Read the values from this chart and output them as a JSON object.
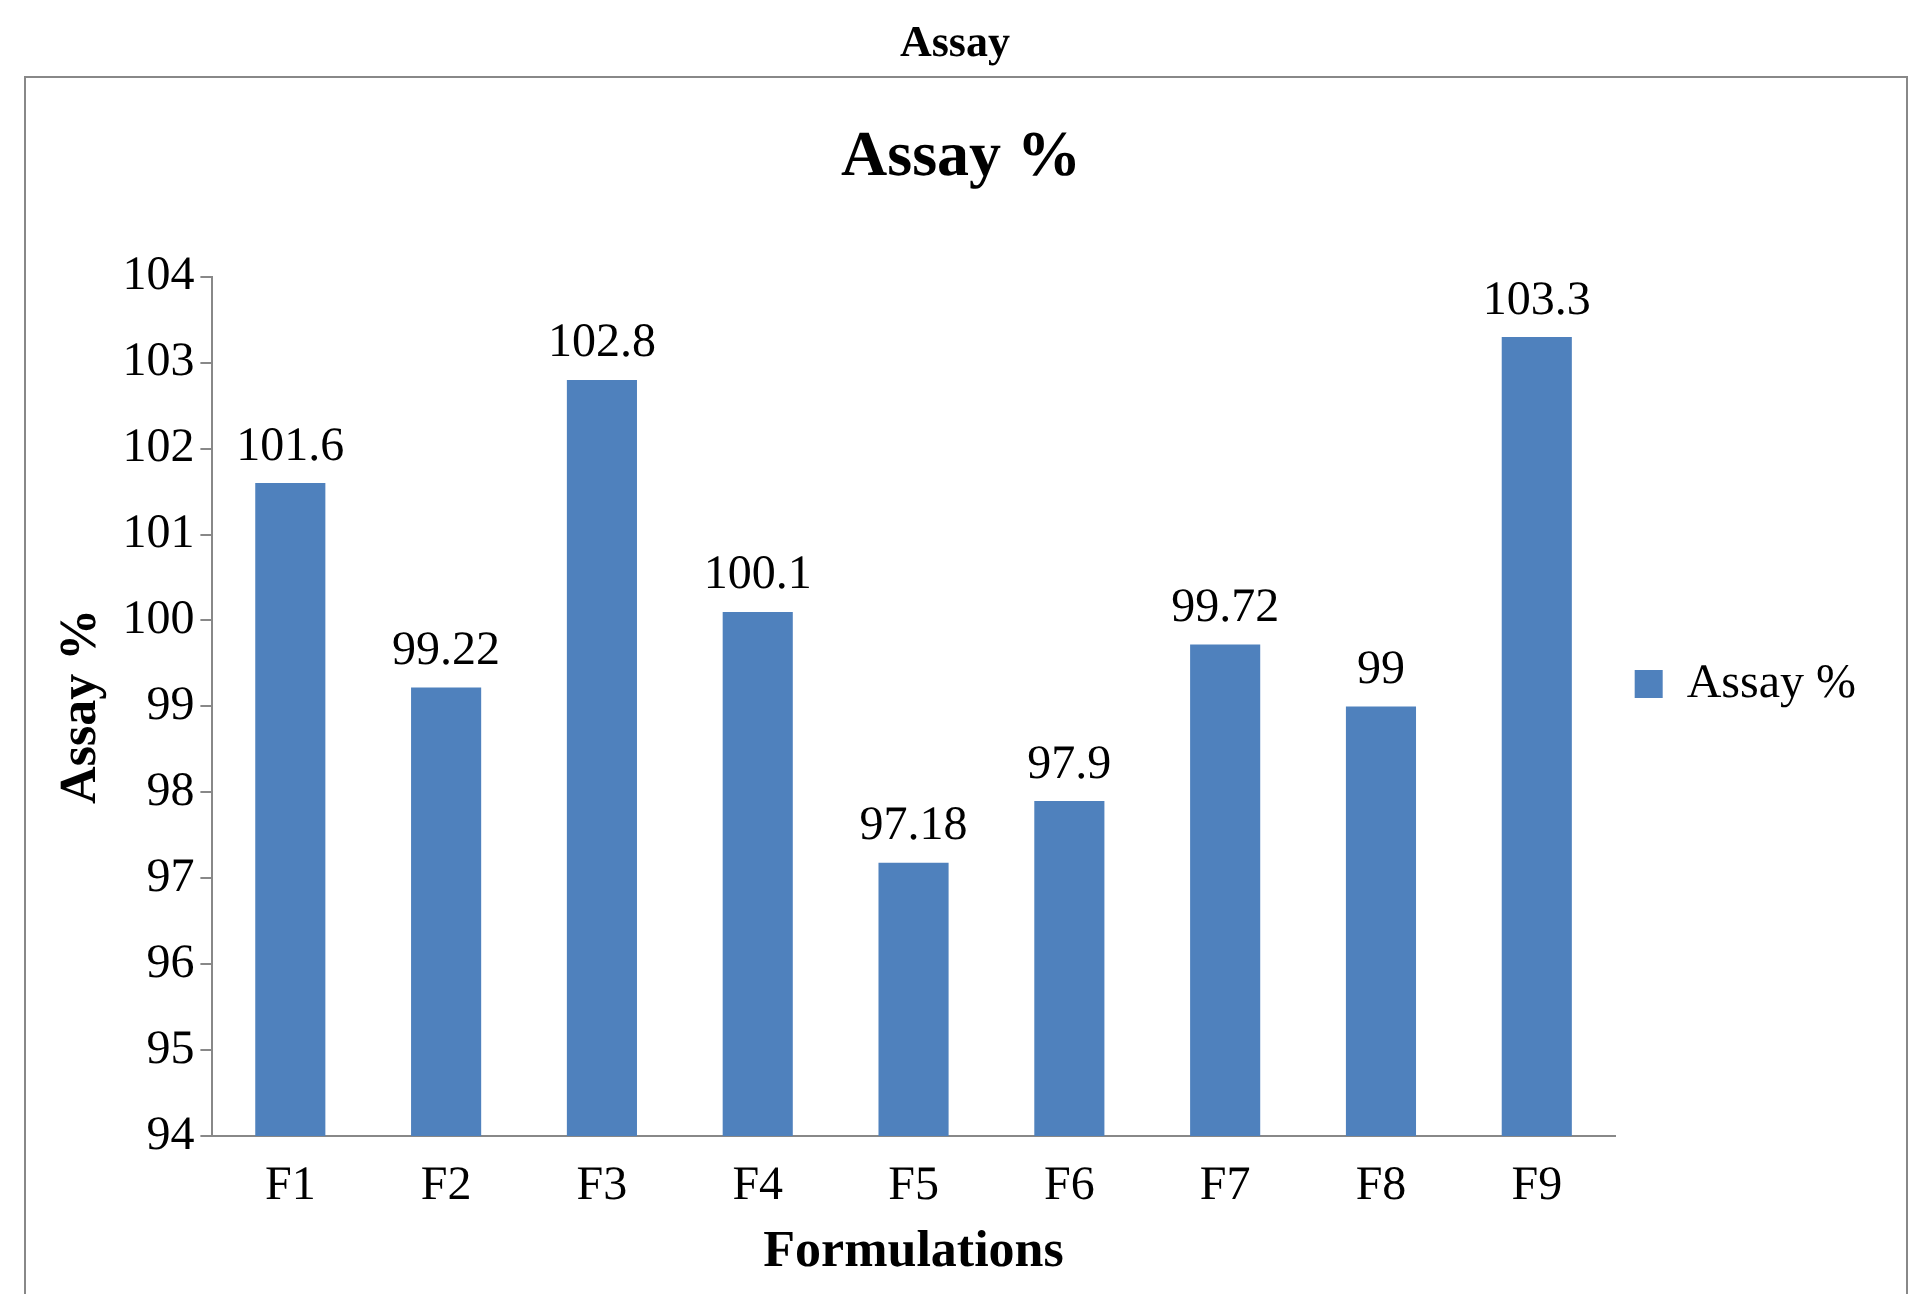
{
  "chart_data": {
    "type": "bar",
    "title": "Assay %",
    "xlabel": "Formulations",
    "ylabel": "Assay %",
    "annotations": [
      "Assay"
    ],
    "categories": [
      "F1",
      "F2",
      "F3",
      "F4",
      "F5",
      "F6",
      "F7",
      "F8",
      "F9"
    ],
    "series": [
      {
        "name": "Assay %",
        "color": "#4f81bd",
        "values": [
          101.6,
          99.22,
          102.8,
          100.1,
          97.18,
          97.9,
          99.72,
          99,
          103.3
        ]
      }
    ],
    "ylim": [
      94,
      104
    ],
    "yticks": [
      94,
      95,
      96,
      97,
      98,
      99,
      100,
      101,
      102,
      103,
      104
    ],
    "data_labels": true,
    "legend": "right",
    "grid": false
  }
}
